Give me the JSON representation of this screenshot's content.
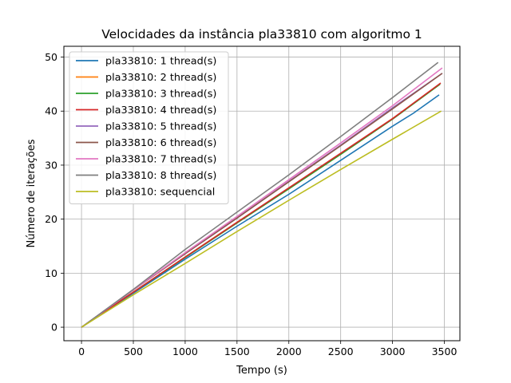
{
  "chart_data": {
    "type": "line",
    "title": "Velocidades da instância pla33810 com algoritmo 1",
    "xlabel": "Tempo (s)",
    "ylabel": "Número de iterações",
    "xlim": [
      -170,
      3650
    ],
    "ylim": [
      -2.5,
      52
    ],
    "xticks": [
      0,
      500,
      1000,
      1500,
      2000,
      2500,
      3000,
      3500
    ],
    "xtick_labels": [
      "0",
      "500",
      "1000",
      "1500",
      "2000",
      "2500",
      "3000",
      "3500"
    ],
    "yticks": [
      0,
      10,
      20,
      30,
      40,
      50
    ],
    "ytick_labels": [
      "0",
      "10",
      "20",
      "30",
      "40",
      "50"
    ],
    "grid": true,
    "legend_position": "upper-left",
    "series": [
      {
        "name": "pla33810: 1 thread(s)",
        "color": "#1f77b4",
        "x": [
          0,
          500,
          1000,
          1500,
          2000,
          2500,
          3000,
          3200,
          3450
        ],
        "y": [
          0,
          6.3,
          12.6,
          18.7,
          24.6,
          30.9,
          37.2,
          39.6,
          43
        ]
      },
      {
        "name": "pla33810: 2 thread(s)",
        "color": "#ff7f0e",
        "x": [
          0,
          500,
          1000,
          1500,
          2000,
          2500,
          3000,
          3460
        ],
        "y": [
          0,
          6.5,
          13.0,
          19.4,
          25.7,
          32.1,
          38.6,
          45
        ]
      },
      {
        "name": "pla33810: 3 thread(s)",
        "color": "#2ca02c",
        "x": [
          0,
          500,
          1000,
          1500,
          2000,
          2500,
          3000,
          3460
        ],
        "y": [
          0,
          6.5,
          12.9,
          19.3,
          25.6,
          32.0,
          38.5,
          45
        ]
      },
      {
        "name": "pla33810: 4 thread(s)",
        "color": "#d62728",
        "x": [
          0,
          500,
          1000,
          1500,
          2000,
          2500,
          3000,
          3465
        ],
        "y": [
          0,
          6.5,
          13.0,
          19.4,
          25.8,
          32.2,
          38.6,
          45.2
        ]
      },
      {
        "name": "pla33810: 5 thread(s)",
        "color": "#9467bd",
        "x": [
          0,
          500,
          1000,
          1500,
          2000,
          2500,
          3000,
          3480
        ],
        "y": [
          0,
          6.9,
          13.6,
          20.2,
          27.0,
          33.7,
          40.6,
          47
        ]
      },
      {
        "name": "pla33810: 6 thread(s)",
        "color": "#8c564b",
        "x": [
          0,
          500,
          1000,
          1500,
          2000,
          2500,
          3000,
          3480
        ],
        "y": [
          0,
          6.9,
          13.6,
          20.2,
          26.9,
          33.6,
          40.4,
          47
        ]
      },
      {
        "name": "pla33810: 7 thread(s)",
        "color": "#e377c2",
        "x": [
          0,
          500,
          1000,
          1500,
          2000,
          2500,
          3000,
          3480
        ],
        "y": [
          0,
          6.9,
          13.8,
          20.5,
          27.3,
          34.1,
          41.0,
          48
        ]
      },
      {
        "name": "pla33810: 8 thread(s)",
        "color": "#7f7f7f",
        "x": [
          0,
          500,
          1000,
          1500,
          2000,
          2500,
          3000,
          3440
        ],
        "y": [
          0,
          7.0,
          14.4,
          21.3,
          28.2,
          35.3,
          42.5,
          49
        ]
      },
      {
        "name": "pla33810: sequencial",
        "color": "#bcbd22",
        "x": [
          0,
          500,
          1000,
          1500,
          2000,
          2500,
          3000,
          3470
        ],
        "y": [
          0,
          6.0,
          11.8,
          17.7,
          23.5,
          29.2,
          34.8,
          40
        ]
      }
    ]
  }
}
